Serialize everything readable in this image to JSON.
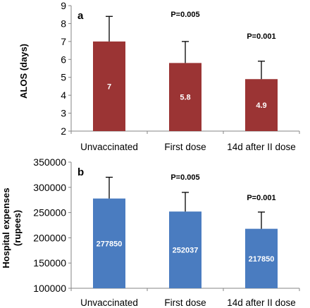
{
  "chart_data": [
    {
      "type": "bar",
      "panel_label": "a",
      "categories": [
        "Unvaccinated",
        "First dose",
        "14d after II dose"
      ],
      "values": [
        7,
        5.8,
        4.9
      ],
      "value_labels": [
        "7",
        "5.8",
        "4.9"
      ],
      "error_upper": [
        8.4,
        7.0,
        5.9
      ],
      "p_values": [
        "",
        "P=0.005",
        "P=0.001"
      ],
      "ylabel": "ALOS  (days)",
      "ylim": [
        2,
        9
      ],
      "yticks": [
        "2",
        "3",
        "4",
        "5",
        "6",
        "7",
        "8",
        "9"
      ],
      "bar_color": "#9b3434",
      "grid": false
    },
    {
      "type": "bar",
      "panel_label": "b",
      "categories": [
        "Unvaccinated",
        "First dose",
        "14d after II dose"
      ],
      "values": [
        277850,
        252037,
        217850
      ],
      "value_labels": [
        "277850",
        "252037",
        "217850"
      ],
      "error_upper": [
        320000,
        290000,
        251000
      ],
      "p_values": [
        "",
        "P=0.005",
        "P=0.001"
      ],
      "ylabel": "Hospital expenses (rupees)",
      "ylabel_lines": [
        "Hospital expenses",
        "(rupees)"
      ],
      "ylim": [
        100000,
        350000
      ],
      "yticks": [
        "100000",
        "150000",
        "200000",
        "250000",
        "300000",
        "350000"
      ],
      "bar_color": "#4a7cc0",
      "grid": false
    }
  ]
}
